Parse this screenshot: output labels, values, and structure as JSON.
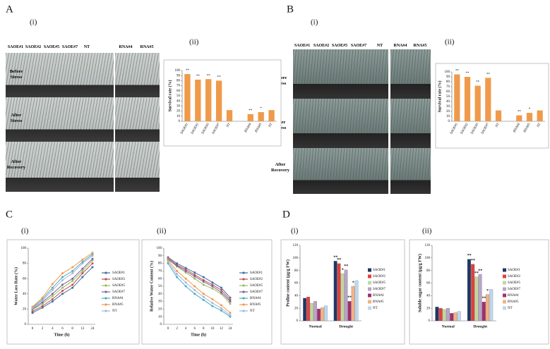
{
  "figure": {
    "panels": [
      {
        "label": "A",
        "parts": [
          "(i)",
          "(ii)"
        ]
      },
      {
        "label": "B",
        "parts": [
          "(i)",
          "(ii)"
        ]
      },
      {
        "label": "C",
        "parts": [
          "(i)",
          "(ii)"
        ]
      },
      {
        "label": "D",
        "parts": [
          "(i)",
          "(ii)"
        ]
      }
    ],
    "photos": [
      {
        "columns": [
          "SAOE#1",
          "SAOE#2",
          "SAOE#5",
          "SAOE#7",
          "NT",
          "RNA#4",
          "RNA#5"
        ],
        "rows": [
          "Before Stress",
          "After Stress",
          "After Recovery"
        ]
      },
      {
        "columns": [
          "SAOE#1",
          "SAOE#2",
          "SAOE#5",
          "SAOE#7",
          "NT",
          "RNA#4",
          "RNA#5"
        ],
        "rows": [
          "Before Stress",
          "After Stress",
          "After Recovery"
        ]
      }
    ]
  },
  "chart_data": [
    {
      "type": "bar",
      "y_label": "Survival rate (%)",
      "color": "#ef9a4a",
      "categories": [
        "SAOE#1",
        "SAOE#2",
        "SAOE#5",
        "SAOE#7",
        "NT",
        null,
        "RNA#4",
        "RNA#5",
        "NT"
      ],
      "values": [
        93,
        82,
        83,
        80,
        22,
        null,
        14,
        18,
        22
      ],
      "stars": [
        "**",
        "**",
        "**",
        "**",
        null,
        null,
        "**",
        "*",
        null
      ],
      "ylim": [
        0,
        100
      ],
      "yticks": [
        0,
        10,
        20,
        30,
        40,
        50,
        60,
        70,
        80,
        90,
        100
      ]
    },
    {
      "type": "bar",
      "y_label": "Survival rate (%)",
      "color": "#ef9a4a",
      "categories": [
        "SAOE#1",
        "SAOE#2",
        "SAOE#5",
        "SAOE#7",
        "NT",
        null,
        "RNA#4",
        "RNA#5",
        "NT"
      ],
      "values": [
        95,
        90,
        72,
        88,
        22,
        null,
        12,
        17,
        22
      ],
      "stars": [
        "**",
        "**",
        "**",
        "**",
        null,
        null,
        "**",
        "*",
        null
      ],
      "ylim": [
        0,
        100
      ],
      "yticks": [
        0,
        10,
        20,
        30,
        40,
        50,
        60,
        70,
        80,
        90,
        100
      ]
    },
    {
      "type": "line",
      "x_label": "Time (h)",
      "y_label": "Water Loss Rate (%)",
      "categories": [
        "0",
        "2",
        "4",
        "6",
        "8",
        "12",
        "24"
      ],
      "ylim": [
        0,
        100
      ],
      "yticks": [
        0,
        20,
        40,
        60,
        80,
        100
      ],
      "series": [
        {
          "name": "SAOE#1",
          "color": "#3f6fa6",
          "values": [
            15,
            22,
            30,
            40,
            48,
            62,
            75
          ]
        },
        {
          "name": "SAOE#2",
          "color": "#c0504d",
          "values": [
            17,
            24,
            33,
            44,
            52,
            67,
            80
          ]
        },
        {
          "name": "SAOE#5",
          "color": "#9bbb59",
          "values": [
            19,
            27,
            37,
            48,
            57,
            70,
            84
          ]
        },
        {
          "name": "SAOE#7",
          "color": "#7f5f9f",
          "values": [
            20,
            29,
            40,
            52,
            60,
            73,
            86
          ]
        },
        {
          "name": "RNA#4",
          "color": "#4bacc6",
          "values": [
            22,
            33,
            48,
            62,
            70,
            82,
            92
          ]
        },
        {
          "name": "RNA#5",
          "color": "#f79646",
          "values": [
            23,
            35,
            53,
            67,
            75,
            85,
            94
          ]
        },
        {
          "name": "NT",
          "color": "#9db9dc",
          "values": [
            21,
            31,
            45,
            58,
            67,
            80,
            90
          ]
        }
      ]
    },
    {
      "type": "line",
      "x_label": "Time (h)",
      "y_label": "Relative Water Content (%)",
      "categories": [
        "0",
        "2",
        "4",
        "6",
        "8",
        "10",
        "12",
        "24"
      ],
      "ylim": [
        0,
        100
      ],
      "yticks": [
        0,
        10,
        20,
        30,
        40,
        50,
        60,
        70,
        80,
        90,
        100
      ],
      "series": [
        {
          "name": "SAOE#1",
          "color": "#3f6fa6",
          "values": [
            88,
            80,
            74,
            68,
            62,
            55,
            48,
            35
          ]
        },
        {
          "name": "SAOE#2",
          "color": "#c0504d",
          "values": [
            87,
            78,
            72,
            65,
            58,
            52,
            45,
            32
          ]
        },
        {
          "name": "SAOE#5",
          "color": "#9bbb59",
          "values": [
            86,
            76,
            68,
            60,
            52,
            47,
            40,
            27
          ]
        },
        {
          "name": "SAOE#7",
          "color": "#7f5f9f",
          "values": [
            85,
            77,
            70,
            63,
            56,
            50,
            42,
            30
          ]
        },
        {
          "name": "RNA#4",
          "color": "#4bacc6",
          "values": [
            80,
            62,
            50,
            40,
            32,
            24,
            18,
            10
          ]
        },
        {
          "name": "RNA#5",
          "color": "#f79646",
          "values": [
            84,
            70,
            60,
            50,
            40,
            33,
            25,
            15
          ]
        },
        {
          "name": "NT",
          "color": "#9db9dc",
          "values": [
            82,
            66,
            55,
            45,
            36,
            28,
            21,
            12
          ]
        }
      ]
    },
    {
      "type": "grouped_bar",
      "y_label": "Proline content (μg/g FW)",
      "categories": [
        "Normal",
        "Drought"
      ],
      "ylim": [
        0,
        120
      ],
      "yticks": [
        0,
        20,
        40,
        60,
        80,
        100,
        120
      ],
      "series": [
        {
          "name": "SAOE#1",
          "color": "#1f3864",
          "values": [
            36,
            95
          ],
          "stars": [
            null,
            "**"
          ]
        },
        {
          "name": "SAOE#2",
          "color": "#e04040",
          "values": [
            38,
            91
          ],
          "stars": [
            null,
            "**"
          ]
        },
        {
          "name": "SAOE#5",
          "color": "#c4d79b",
          "values": [
            28,
            75
          ],
          "stars": [
            null,
            "*"
          ]
        },
        {
          "name": "SAOE#7",
          "color": "#b7a4c8",
          "values": [
            31,
            81
          ],
          "stars": [
            null,
            "**"
          ]
        },
        {
          "name": "RNA#4",
          "color": "#a0306b",
          "values": [
            19,
            31
          ],
          "stars": [
            null,
            "**"
          ]
        },
        {
          "name": "RNA#5",
          "color": "#f4b183",
          "values": [
            21,
            55
          ],
          "stars": [
            null,
            "*"
          ]
        },
        {
          "name": "NT",
          "color": "#bdd7ee",
          "values": [
            24,
            64
          ],
          "stars": [
            null,
            null
          ]
        }
      ]
    },
    {
      "type": "grouped_bar",
      "y_label": "Soluble sugar content (μg/g FW)",
      "categories": [
        "Normal",
        "Drought"
      ],
      "ylim": [
        0,
        120
      ],
      "yticks": [
        0,
        20,
        40,
        60,
        80,
        100,
        120
      ],
      "series": [
        {
          "name": "SAOE#1",
          "color": "#1f3864",
          "values": [
            22,
            98
          ],
          "stars": [
            null,
            "**"
          ]
        },
        {
          "name": "SAOE#2",
          "color": "#e04040",
          "values": [
            20,
            90
          ],
          "stars": [
            null,
            "**"
          ]
        },
        {
          "name": "SAOE#5",
          "color": "#c4d79b",
          "values": [
            18,
            70
          ],
          "stars": [
            null,
            "**"
          ]
        },
        {
          "name": "SAOE#7",
          "color": "#b7a4c8",
          "values": [
            20,
            74
          ],
          "stars": [
            null,
            "**"
          ]
        },
        {
          "name": "RNA#4",
          "color": "#a0306b",
          "values": [
            12,
            30
          ],
          "stars": [
            null,
            "**"
          ]
        },
        {
          "name": "RNA#5",
          "color": "#f4b183",
          "values": [
            13,
            42
          ],
          "stars": [
            null,
            "*"
          ]
        },
        {
          "name": "NT",
          "color": "#bdd7ee",
          "values": [
            15,
            50
          ],
          "stars": [
            null,
            null
          ]
        }
      ]
    }
  ]
}
